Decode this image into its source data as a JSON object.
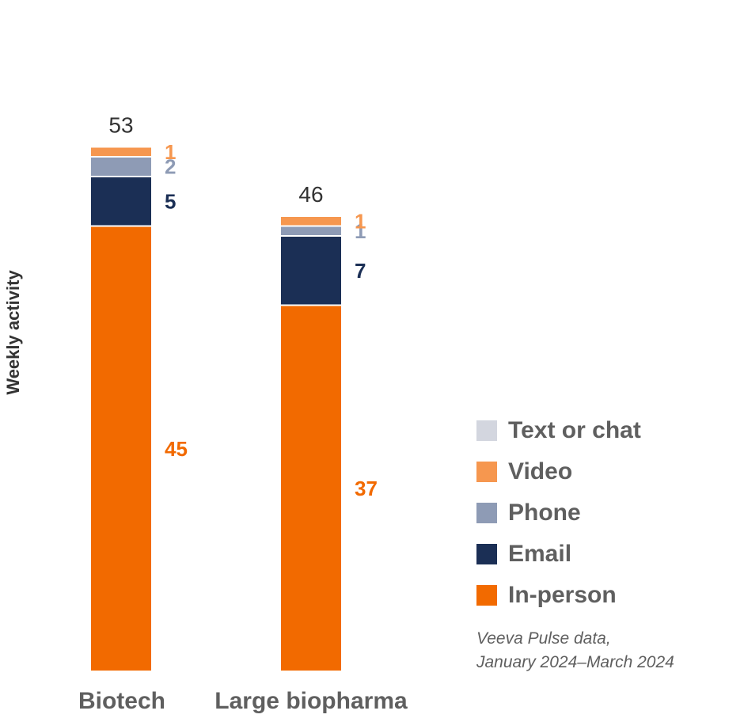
{
  "chart_data": {
    "type": "bar",
    "stacked": true,
    "ylabel": "Weekly activity",
    "xlabel": "",
    "categories": [
      "Biotech",
      "Large biopharma"
    ],
    "totals": [
      53,
      46
    ],
    "series": [
      {
        "name": "In-person",
        "values": [
          45,
          37
        ],
        "color": "#f26a00"
      },
      {
        "name": "Email",
        "values": [
          5,
          7
        ],
        "color": "#1b2f55"
      },
      {
        "name": "Phone",
        "values": [
          2,
          1
        ],
        "color": "#8e9bb5"
      },
      {
        "name": "Video",
        "values": [
          1,
          1
        ],
        "color": "#f6974f"
      },
      {
        "name": "Text or chat",
        "values": [
          0,
          0
        ],
        "color": "#d3d6df"
      }
    ],
    "legend_order": [
      "Text or chat",
      "Video",
      "Phone",
      "Email",
      "In-person"
    ],
    "legend_position": "bottom-right",
    "grid": false
  },
  "source_note": {
    "line1": "Veeva Pulse data,",
    "line2": "January 2024–March 2024"
  }
}
